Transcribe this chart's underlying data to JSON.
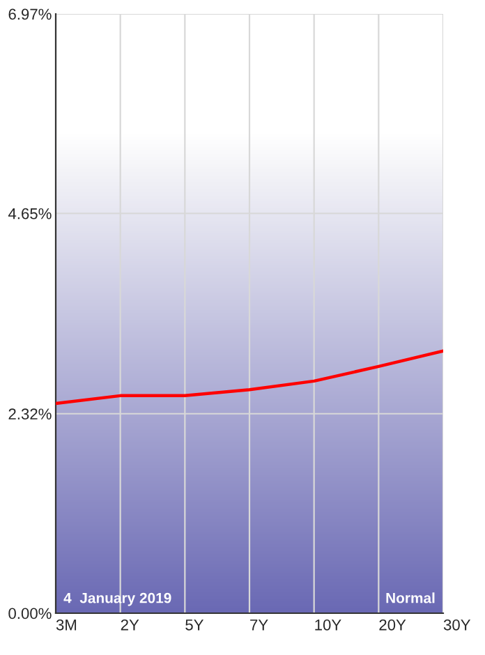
{
  "chart_data": {
    "type": "line",
    "categories": [
      "3M",
      "2Y",
      "5Y",
      "7Y",
      "10Y",
      "20Y",
      "30Y"
    ],
    "series": [
      {
        "color": "#ff0000",
        "values": [
          2.44,
          2.53,
          2.53,
          2.6,
          2.7,
          2.87,
          3.05
        ]
      }
    ],
    "ylim": [
      0,
      6.97
    ],
    "yticks": [
      {
        "value": 0,
        "label": "0.00%"
      },
      {
        "value": 2.32,
        "label": "2.32%"
      },
      {
        "value": 4.65,
        "label": "4.65%"
      },
      {
        "value": 6.97,
        "label": "6.97%"
      }
    ],
    "grid": true,
    "legend": false,
    "marker": "none",
    "line_style": "solid",
    "annotations": [
      "4  January 2019",
      "Normal"
    ]
  }
}
